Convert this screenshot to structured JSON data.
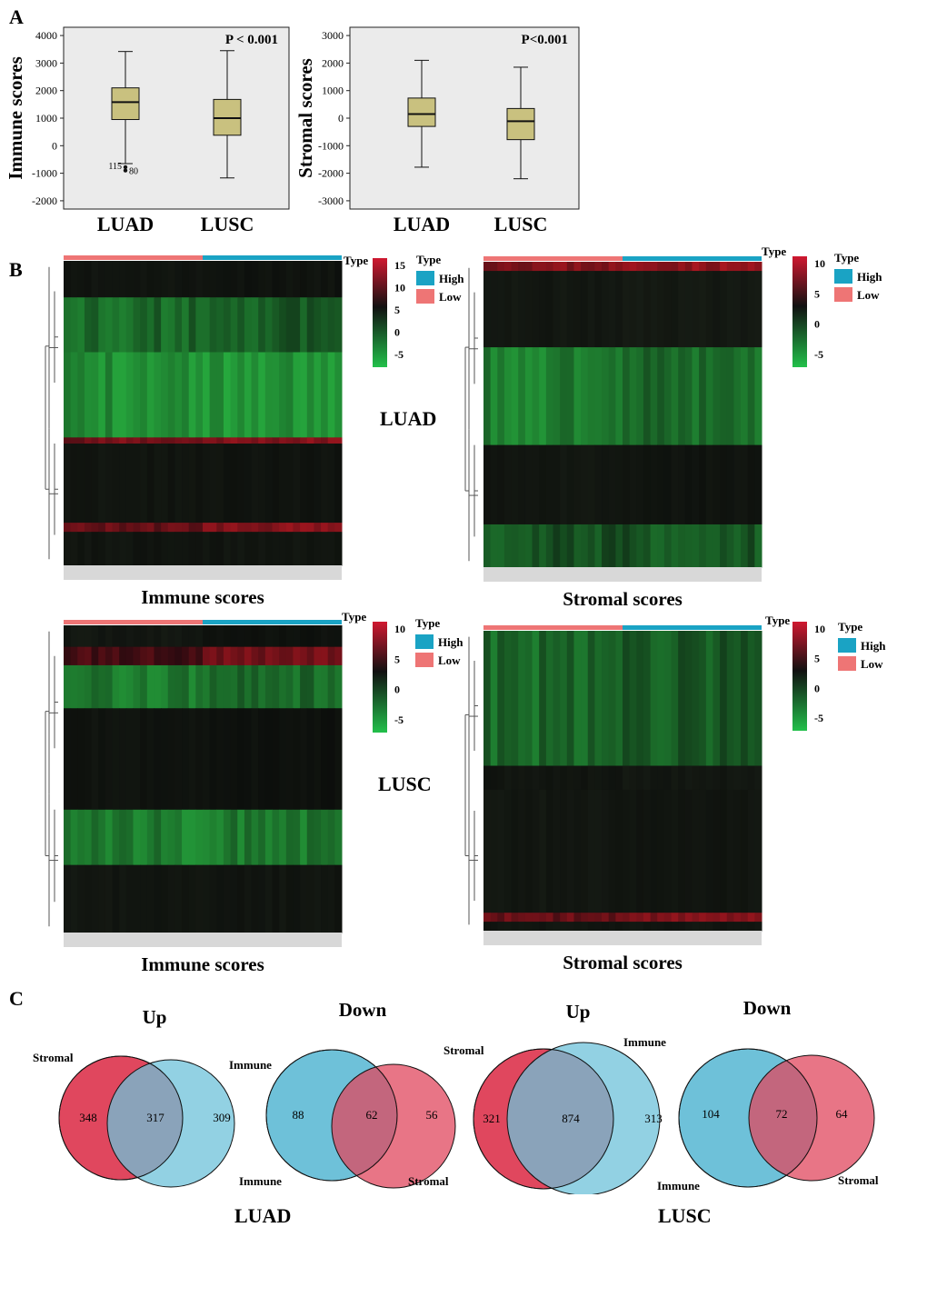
{
  "panels": {
    "a": "A",
    "b": "B",
    "c": "C"
  },
  "colors": {
    "box_fill": "#c9c17f",
    "plot_bg": "#ebebeb",
    "high": "#1aa3c4",
    "low": "#ee7575",
    "venn_red": "#e0475e",
    "venn_blue": "#6ec1d9",
    "heat_green": "#2fbf4a",
    "heat_red": "#c0182b"
  },
  "chart_data": [
    {
      "type": "boxplot",
      "ylabel": "Immune scores",
      "annotation": "P < 0.001",
      "categories": [
        "LUAD",
        "LUSC"
      ],
      "yticks": [
        4000,
        3000,
        2000,
        1000,
        0,
        -1000,
        -2000
      ],
      "ylim": [
        -2300,
        4300
      ],
      "boxes": [
        {
          "name": "LUAD",
          "min": -650,
          "q1": 950,
          "median": 1580,
          "q3": 2100,
          "max": 3420
        },
        {
          "name": "LUSC",
          "min": -1170,
          "q1": 380,
          "median": 1000,
          "q3": 1680,
          "max": 3450
        }
      ],
      "outliers": [
        {
          "label": "115",
          "value": -780
        },
        {
          "label": "80",
          "value": -900
        }
      ]
    },
    {
      "type": "boxplot",
      "ylabel": "Stromal scores",
      "annotation": "P<0.001",
      "categories": [
        "LUAD",
        "LUSC"
      ],
      "yticks": [
        3000,
        2000,
        1000,
        0,
        -1000,
        -2000,
        -3000
      ],
      "ylim": [
        -3300,
        3300
      ],
      "boxes": [
        {
          "name": "LUAD",
          "min": -1780,
          "q1": -300,
          "median": 150,
          "q3": 730,
          "max": 2100
        },
        {
          "name": "LUSC",
          "min": -2200,
          "q1": -780,
          "median": -110,
          "q3": 350,
          "max": 1850
        }
      ]
    },
    {
      "type": "heatmap",
      "group": "LUAD",
      "title": "Immune scores",
      "legend_title": "Type",
      "legend": [
        "High",
        "Low"
      ],
      "scale_ticks": [
        15,
        10,
        5,
        0,
        -5
      ]
    },
    {
      "type": "heatmap",
      "group": "LUAD",
      "title": "Stromal scores",
      "legend_title": "Type",
      "legend": [
        "High",
        "Low"
      ],
      "scale_ticks": [
        10,
        5,
        0,
        -5
      ]
    },
    {
      "type": "heatmap",
      "group": "LUSC",
      "title": "Immune scores",
      "legend_title": "Type",
      "legend": [
        "High",
        "Low"
      ],
      "scale_ticks": [
        10,
        5,
        0,
        -5
      ]
    },
    {
      "type": "heatmap",
      "group": "LUSC",
      "title": "Stromal scores",
      "legend_title": "Type",
      "legend": [
        "High",
        "Low"
      ],
      "scale_ticks": [
        10,
        5,
        0,
        -5
      ]
    },
    {
      "type": "venn",
      "group": "LUAD",
      "direction": "Up",
      "sets": [
        {
          "name": "Stromal",
          "only": 348
        },
        {
          "name": "Immune",
          "only": 309
        }
      ],
      "overlap": 317
    },
    {
      "type": "venn",
      "group": "LUAD",
      "direction": "Down",
      "sets": [
        {
          "name": "Immune",
          "only": 88
        },
        {
          "name": "Stromal",
          "only": 56
        }
      ],
      "overlap": 62
    },
    {
      "type": "venn",
      "group": "LUSC",
      "direction": "Up",
      "sets": [
        {
          "name": "Stromal",
          "only": 321
        },
        {
          "name": "Immune",
          "only": 313
        }
      ],
      "overlap": 874
    },
    {
      "type": "venn",
      "group": "LUSC",
      "direction": "Down",
      "sets": [
        {
          "name": "Immune",
          "only": 104
        },
        {
          "name": "Stromal",
          "only": 64
        }
      ],
      "overlap": 72
    }
  ]
}
